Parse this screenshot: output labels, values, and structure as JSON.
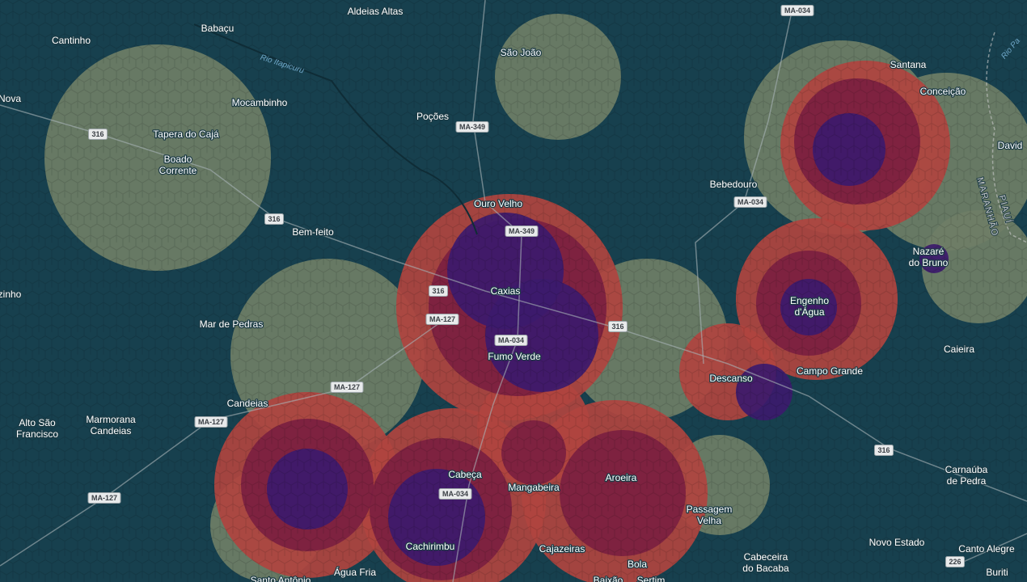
{
  "places": [
    [
      "Aldeias Altas"
    ],
    [
      "Babaçu"
    ],
    [
      "Cantinho"
    ],
    [
      "São João"
    ],
    [
      "Santana"
    ],
    [
      "Conceição"
    ],
    [
      "Nova"
    ],
    [
      "Mocambinho"
    ],
    [
      "Poções"
    ],
    [
      "Tapera do Cajá"
    ],
    [
      "Boado",
      "Corrente"
    ],
    [
      "David"
    ],
    [
      "Bebedouro"
    ],
    [
      "Ouro Velho"
    ],
    [
      "Bem-feito"
    ],
    [
      "Nazaré",
      "do Bruno"
    ],
    [
      "Caxias"
    ],
    [
      "zinho"
    ],
    [
      "Engenho",
      "d'Água"
    ],
    [
      "Mar de Pedras"
    ],
    [
      "Caieira"
    ],
    [
      "Fumo Verde"
    ],
    [
      "Campo Grande"
    ],
    [
      "Descanso"
    ],
    [
      "Candeias"
    ],
    [
      "Alto São",
      "Francisco"
    ],
    [
      "Marmorana",
      "Candeias"
    ],
    [
      "Carnaúba",
      "de Pedra"
    ],
    [
      "Cabeça"
    ],
    [
      "Aroeira"
    ],
    [
      "Mangabeira"
    ],
    [
      "Passagem",
      "Velha"
    ],
    [
      "Novo Estado"
    ],
    [
      "Canto Alegre"
    ],
    [
      "Cachirimbu"
    ],
    [
      "Cajazeiras"
    ],
    [
      "Cabeceira",
      "do Bacaba"
    ],
    [
      "Bola"
    ],
    [
      "Água Fria"
    ],
    [
      "Buriti"
    ],
    [
      "Santo Antônio"
    ],
    [
      "Baixão"
    ],
    [
      "Sertim"
    ]
  ],
  "roads": [
    "MA-034",
    "MA-349",
    "316",
    "316",
    "MA-034",
    "MA-349",
    "316",
    "MA-127",
    "MA-034",
    "316",
    "MA-127",
    "MA-127",
    "316",
    "MA-034",
    "MA-127",
    "226"
  ],
  "rivers": [
    "Rio Itapicuru",
    "Rio Pa"
  ],
  "regions": [
    "MARANHÃO",
    "PIAUÍ"
  ]
}
